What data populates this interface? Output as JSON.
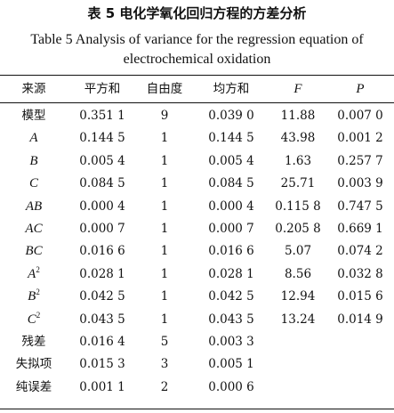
{
  "title_cn": "表 5  电化学氧化回归方程的方差分析",
  "title_en_line1": "Table 5  Analysis of variance for the regression equation of",
  "title_en_line2": "electrochemical oxidation",
  "headers": [
    "来源",
    "平方和",
    "自由度",
    "均方和",
    "F",
    "P"
  ],
  "rows": [
    {
      "source": "模型",
      "italic": false,
      "sup": "",
      "ss": "0.351 1",
      "df": "9",
      "ms": "0.039 0",
      "f": "11.88",
      "p": "0.007 0"
    },
    {
      "source": "A",
      "italic": true,
      "sup": "",
      "ss": "0.144 5",
      "df": "1",
      "ms": "0.144 5",
      "f": "43.98",
      "p": "0.001 2"
    },
    {
      "source": "B",
      "italic": true,
      "sup": "",
      "ss": "0.005 4",
      "df": "1",
      "ms": "0.005 4",
      "f": "1.63",
      "p": "0.257 7"
    },
    {
      "source": "C",
      "italic": true,
      "sup": "",
      "ss": "0.084 5",
      "df": "1",
      "ms": "0.084 5",
      "f": "25.71",
      "p": "0.003 9"
    },
    {
      "source": "AB",
      "italic": true,
      "sup": "",
      "ss": "0.000 4",
      "df": "1",
      "ms": "0.000 4",
      "f": "0.115 8",
      "p": "0.747 5"
    },
    {
      "source": "AC",
      "italic": true,
      "sup": "",
      "ss": "0.000 7",
      "df": "1",
      "ms": "0.000 7",
      "f": "0.205 8",
      "p": "0.669 1"
    },
    {
      "source": "BC",
      "italic": true,
      "sup": "",
      "ss": "0.016 6",
      "df": "1",
      "ms": "0.016 6",
      "f": "5.07",
      "p": "0.074 2"
    },
    {
      "source": "A",
      "italic": true,
      "sup": "2",
      "ss": "0.028 1",
      "df": "1",
      "ms": "0.028 1",
      "f": "8.56",
      "p": "0.032 8"
    },
    {
      "source": "B",
      "italic": true,
      "sup": "2",
      "ss": "0.042 5",
      "df": "1",
      "ms": "0.042 5",
      "f": "12.94",
      "p": "0.015 6"
    },
    {
      "source": "C",
      "italic": true,
      "sup": "2",
      "ss": "0.043 5",
      "df": "1",
      "ms": "0.043 5",
      "f": "13.24",
      "p": "0.014 9"
    },
    {
      "source": "残差",
      "italic": false,
      "sup": "",
      "ss": "0.016 4",
      "df": "5",
      "ms": "0.003 3",
      "f": "",
      "p": ""
    },
    {
      "source": "失拟项",
      "italic": false,
      "sup": "",
      "ss": "0.015 3",
      "df": "3",
      "ms": "0.005 1",
      "f": "",
      "p": ""
    },
    {
      "source": "纯误差",
      "italic": false,
      "sup": "",
      "ss": "0.001 1",
      "df": "2",
      "ms": "0.000 6",
      "f": "",
      "p": ""
    }
  ]
}
